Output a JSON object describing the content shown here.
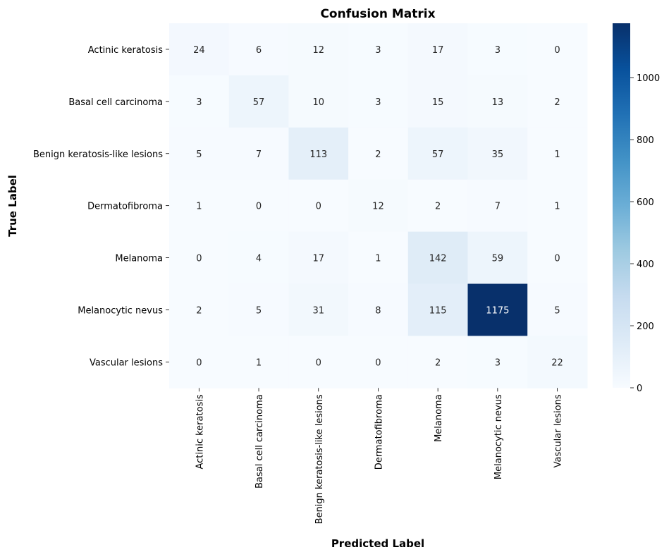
{
  "chart_data": {
    "type": "heatmap",
    "title": "Confusion Matrix",
    "xlabel": "Predicted Label",
    "ylabel": "True Label",
    "x_categories": [
      "Actinic keratosis",
      "Basal cell carcinoma",
      "Benign keratosis-like lesions",
      "Dermatofibroma",
      "Melanoma",
      "Melanocytic nevus",
      "Vascular lesions"
    ],
    "y_categories": [
      "Actinic keratosis",
      "Basal cell carcinoma",
      "Benign keratosis-like lesions",
      "Dermatofibroma",
      "Melanoma",
      "Melanocytic nevus",
      "Vascular lesions"
    ],
    "values": [
      [
        24,
        6,
        12,
        3,
        17,
        3,
        0
      ],
      [
        3,
        57,
        10,
        3,
        15,
        13,
        2
      ],
      [
        5,
        7,
        113,
        2,
        57,
        35,
        1
      ],
      [
        1,
        0,
        0,
        12,
        2,
        7,
        1
      ],
      [
        0,
        4,
        17,
        1,
        142,
        59,
        0
      ],
      [
        2,
        5,
        31,
        8,
        115,
        1175,
        5
      ],
      [
        0,
        1,
        0,
        0,
        2,
        3,
        22
      ]
    ],
    "colormap": "Blues",
    "colormap_stops": [
      "#f7fbff",
      "#deebf7",
      "#c6dbef",
      "#9ecae1",
      "#6baed6",
      "#4292c6",
      "#2171b5",
      "#08519c",
      "#08306b"
    ],
    "colorbar_ticks": [
      0,
      200,
      400,
      600,
      800,
      1000
    ],
    "vmin": 0,
    "vmax": 1175
  }
}
